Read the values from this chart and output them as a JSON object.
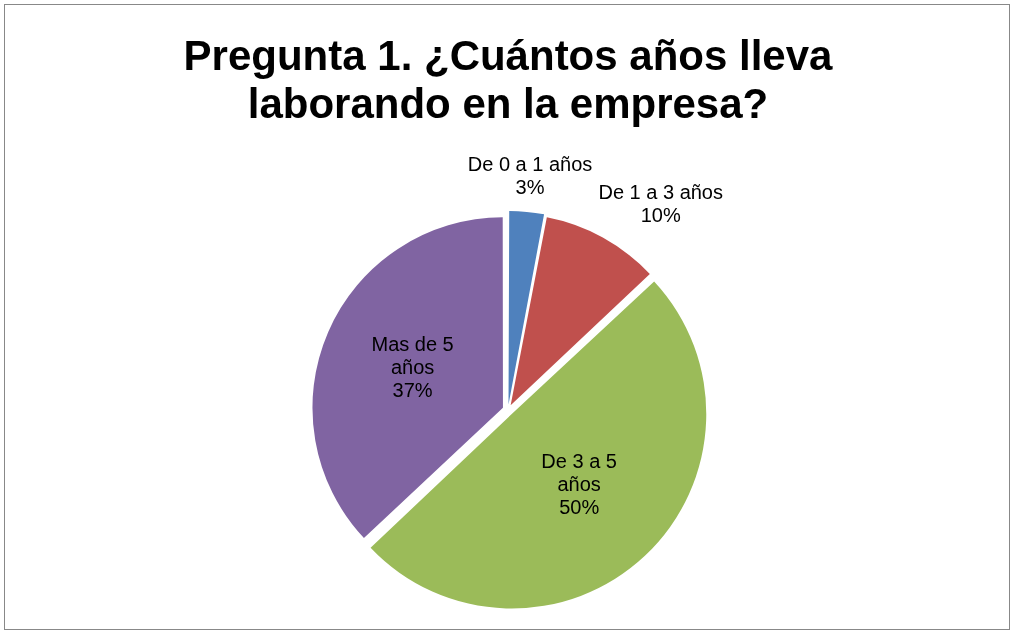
{
  "chart_data": {
    "type": "pie",
    "title": "Pregunta 1.  ¿Cuántos años lleva laborando en la empresa?",
    "categories": [
      "De 0 a 1 años",
      "De 1 a 3 años",
      "De 3 a 5 años",
      "Mas de 5 años"
    ],
    "values": [
      3,
      10,
      50,
      37
    ],
    "colors": [
      "#4f81bd",
      "#c0504d",
      "#9bbb59",
      "#8064a2"
    ],
    "value_labels": [
      "3%",
      "10%",
      "50%",
      "37%"
    ],
    "legend": false
  }
}
